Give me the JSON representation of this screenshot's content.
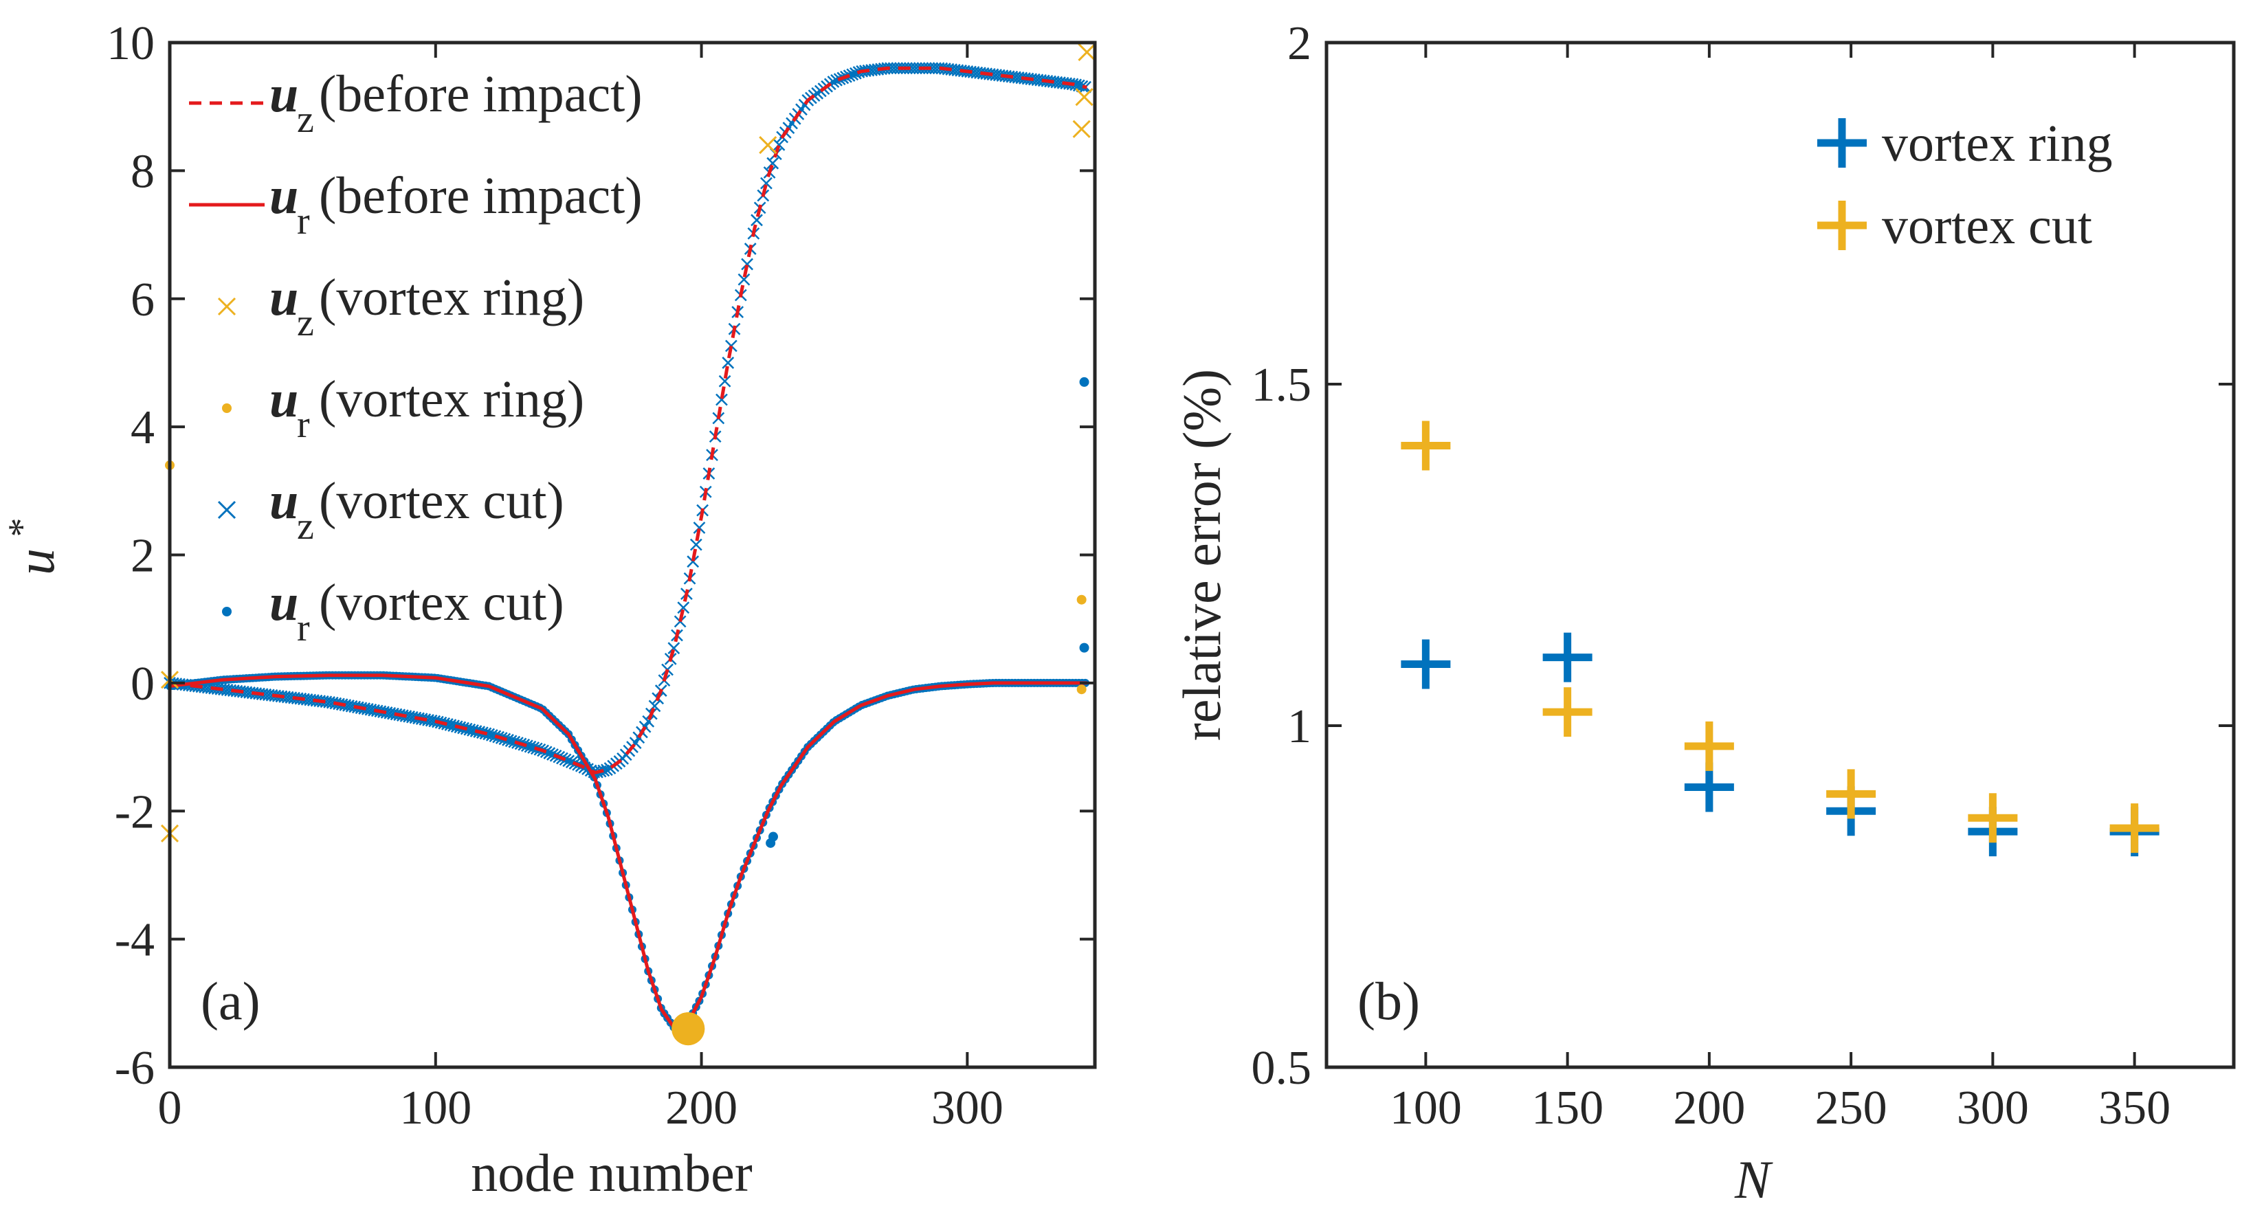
{
  "chart_data": [
    {
      "type": "line",
      "panel_label": "(a)",
      "xlabel": "node number",
      "ylabel": "u",
      "ylabel_sup": "*",
      "xlim": [
        0,
        348
      ],
      "ylim": [
        -6,
        10
      ],
      "xticks": [
        0,
        100,
        200,
        300
      ],
      "yticks": [
        10,
        8,
        6,
        4,
        2,
        0,
        -2,
        -4,
        -6
      ],
      "legend": [
        {
          "var": "u",
          "sub": "z",
          "text": "(before impact)",
          "style": "dashed",
          "color": "#e41a1c"
        },
        {
          "var": "u",
          "sub": "r",
          "text": "(before impact)",
          "style": "solid",
          "color": "#e41a1c"
        },
        {
          "var": "u",
          "sub": "z",
          "text": "(vortex ring)",
          "style": "x",
          "color": "#edb120"
        },
        {
          "var": "u",
          "sub": "r",
          "text": "(vortex ring)",
          "style": "dot",
          "color": "#edb120"
        },
        {
          "var": "u",
          "sub": "z",
          "text": "(vortex cut)",
          "style": "x",
          "color": "#0072bd"
        },
        {
          "var": "u",
          "sub": "r",
          "text": "(vortex cut)",
          "style": "dot",
          "color": "#0072bd"
        }
      ],
      "series": [
        {
          "name": "u_z (before impact)",
          "color": "#e41a1c",
          "x": [
            0,
            20,
            40,
            60,
            80,
            100,
            120,
            140,
            155,
            160,
            165,
            170,
            175,
            180,
            185,
            190,
            195,
            200,
            205,
            210,
            215,
            220,
            225,
            230,
            240,
            250,
            260,
            270,
            280,
            290,
            300,
            310,
            320,
            330,
            340,
            345
          ],
          "y": [
            0.0,
            -0.1,
            -0.2,
            -0.3,
            -0.45,
            -0.6,
            -0.8,
            -1.05,
            -1.3,
            -1.4,
            -1.35,
            -1.2,
            -0.95,
            -0.6,
            -0.1,
            0.6,
            1.5,
            2.6,
            3.8,
            5.0,
            6.1,
            7.1,
            7.9,
            8.5,
            9.1,
            9.4,
            9.55,
            9.6,
            9.6,
            9.6,
            9.55,
            9.5,
            9.45,
            9.4,
            9.35,
            9.3
          ]
        },
        {
          "name": "u_r (before impact)",
          "color": "#e41a1c",
          "x": [
            0,
            20,
            40,
            60,
            80,
            100,
            120,
            140,
            150,
            160,
            165,
            170,
            175,
            180,
            185,
            190,
            195,
            200,
            205,
            210,
            215,
            220,
            225,
            230,
            240,
            250,
            260,
            270,
            280,
            290,
            300,
            310,
            320,
            330,
            340,
            345
          ],
          "y": [
            -0.05,
            0.05,
            0.1,
            0.12,
            0.12,
            0.08,
            -0.05,
            -0.4,
            -0.8,
            -1.5,
            -2.1,
            -2.9,
            -3.7,
            -4.5,
            -5.1,
            -5.4,
            -5.3,
            -4.9,
            -4.3,
            -3.6,
            -3.0,
            -2.5,
            -2.0,
            -1.6,
            -1.0,
            -0.6,
            -0.35,
            -0.2,
            -0.1,
            -0.05,
            -0.02,
            0.0,
            0.0,
            0.0,
            0.0,
            0.0
          ]
        },
        {
          "name": "u_z (vortex ring) outliers",
          "color": "#edb120",
          "marker": "x",
          "x": [
            0,
            0,
            343,
            344,
            345,
            225
          ],
          "y": [
            -2.35,
            0.05,
            8.65,
            9.15,
            9.85,
            8.4
          ]
        },
        {
          "name": "u_r (vortex ring) outliers",
          "color": "#edb120",
          "marker": "dot",
          "x": [
            0,
            343,
            343,
            195,
            195
          ],
          "y": [
            3.4,
            1.3,
            -0.1,
            -5.4,
            -5.4
          ]
        },
        {
          "name": "u_r (vortex cut) outliers",
          "color": "#0072bd",
          "marker": "dot",
          "x": [
            344,
            344,
            226,
            227
          ],
          "y": [
            4.7,
            0.55,
            -2.5,
            -2.4
          ]
        }
      ]
    },
    {
      "type": "scatter",
      "panel_label": "(b)",
      "xlabel": "N",
      "ylabel": "relative error (%)",
      "xlim": [
        65,
        385
      ],
      "ylim": [
        0.5,
        2
      ],
      "xticks": [
        100,
        150,
        200,
        250,
        300,
        350
      ],
      "yticks": [
        2,
        1.5,
        1,
        0.5
      ],
      "ytick_labels": [
        "2",
        "1.5",
        "1",
        "0.5"
      ],
      "legend": [
        {
          "text": "vortex ring",
          "color": "#0072bd"
        },
        {
          "text": "vortex cut",
          "color": "#edb120"
        }
      ],
      "series": [
        {
          "name": "vortex ring",
          "color": "#0072bd",
          "marker": "+",
          "x": [
            100,
            150,
            200,
            250,
            300,
            350
          ],
          "y": [
            1.09,
            1.1,
            0.91,
            0.875,
            0.845,
            0.845
          ]
        },
        {
          "name": "vortex cut",
          "color": "#edb120",
          "marker": "+",
          "x": [
            100,
            150,
            200,
            250,
            300,
            350
          ],
          "y": [
            1.41,
            1.02,
            0.97,
            0.9,
            0.865,
            0.85
          ]
        }
      ]
    }
  ]
}
